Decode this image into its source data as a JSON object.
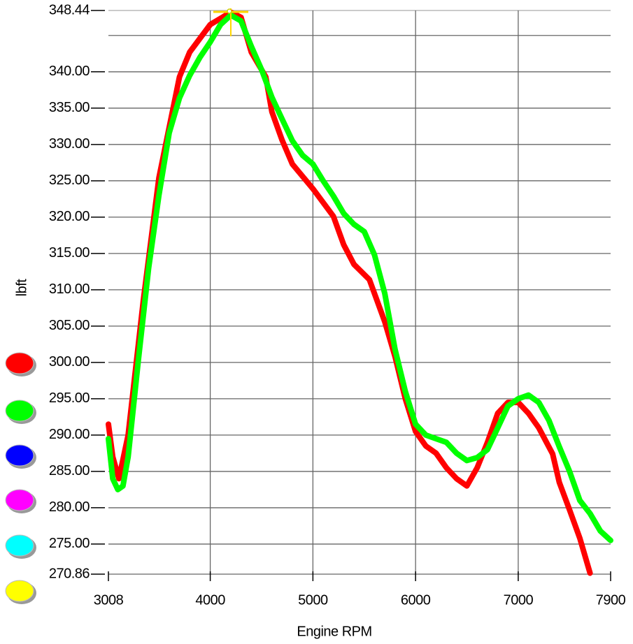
{
  "chart_data": {
    "type": "line",
    "x_label": "Engine RPM",
    "y_label": "lbft",
    "xlim": [
      3008,
      7900
    ],
    "xticks": [
      3008,
      4000,
      5000,
      6000,
      7000,
      7900
    ],
    "ylim": [
      270.86,
      348.44
    ],
    "yticks": [
      270.86,
      {
        "value": 275,
        "label": "275.00"
      },
      {
        "value": 280,
        "label": "280.00"
      },
      {
        "value": 285,
        "label": "285.00"
      },
      {
        "value": 290,
        "label": "290.00"
      },
      {
        "value": 295,
        "label": "295.00"
      },
      {
        "value": 300,
        "label": "300.00"
      },
      {
        "value": 305,
        "label": "305.00"
      },
      {
        "value": 310,
        "label": "310.00"
      },
      {
        "value": 315,
        "label": "315.00"
      },
      {
        "value": 320,
        "label": "320.00"
      },
      {
        "value": 325,
        "label": "325.00"
      },
      {
        "value": 330,
        "label": "330.00"
      },
      {
        "value": 335,
        "label": "335.00"
      },
      {
        "value": 340,
        "label": "340.00"
      },
      {
        "value": 345,
        "label": null
      },
      348.44
    ],
    "grid": true,
    "legend_colors": [
      "#ff0000",
      "#00ff00",
      "#0000ff",
      "#ff00ff",
      "#00ffff",
      "#ffff00"
    ],
    "series": [
      {
        "color": "#ff0000",
        "x": [
          3008,
          3050,
          3110,
          3200,
          3348,
          3500,
          3700,
          3800,
          4000,
          4200,
          4300,
          4400,
          4541,
          4600,
          4700,
          4800,
          5000,
          5200,
          5300,
          5400,
          5550,
          5700,
          5800,
          5900,
          6000,
          6100,
          6200,
          6300,
          6400,
          6500,
          6600,
          6700,
          6800,
          6900,
          7000,
          7100,
          7200,
          7335,
          7400,
          7500,
          7600,
          7700
        ],
        "values": [
          291.5,
          287,
          284,
          290,
          308.5,
          325.4,
          339.3,
          342.7,
          346.5,
          348.2,
          347.5,
          342.7,
          339.3,
          334.5,
          330.6,
          327.3,
          323.9,
          320.1,
          316.2,
          313.5,
          311.4,
          305.6,
          300.8,
          295,
          290.5,
          288.5,
          287.5,
          285.5,
          284,
          283,
          285.5,
          289,
          293,
          294.5,
          294.5,
          293,
          291,
          287.4,
          283.5,
          279.7,
          275.8,
          271
        ]
      },
      {
        "color": "#00ff00",
        "x": [
          3008,
          3050,
          3100,
          3150,
          3200,
          3300,
          3400,
          3500,
          3600,
          3700,
          3800,
          3900,
          4000,
          4100,
          4200,
          4300,
          4400,
          4500,
          4600,
          4700,
          4800,
          4900,
          5000,
          5100,
          5200,
          5300,
          5400,
          5500,
          5600,
          5700,
          5800,
          5900,
          6000,
          6100,
          6200,
          6300,
          6400,
          6500,
          6600,
          6700,
          6800,
          6900,
          7000,
          7100,
          7200,
          7300,
          7400,
          7500,
          7600,
          7700,
          7800,
          7900
        ],
        "values": [
          289.5,
          284,
          282.5,
          283,
          287,
          300.4,
          313,
          323,
          331.6,
          336.4,
          339.5,
          342,
          344.1,
          346.5,
          347.8,
          347,
          343.5,
          340.3,
          336.5,
          333.5,
          330.5,
          328.5,
          327.3,
          325,
          322.9,
          320.5,
          319,
          318,
          314.8,
          309.5,
          301.8,
          296,
          291.5,
          290,
          289.5,
          289,
          287.5,
          286.5,
          286.9,
          288,
          291,
          294,
          295,
          295.5,
          294.5,
          292,
          288.4,
          285,
          281,
          279.2,
          276.8,
          275.5
        ]
      }
    ]
  }
}
